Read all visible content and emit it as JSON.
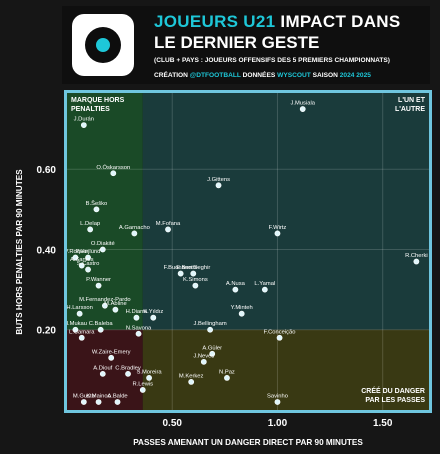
{
  "header": {
    "title_accent": "JOUEURS U21",
    "title_rest": " IMPACT DANS",
    "title_line2": "LE DERNIER GESTE",
    "subtitle": "(CLUB + PAYS : JOUEURS OFFENSIFS DES 5 PREMIERS CHAMPIONNATS)",
    "credits_label": "CRÉATION",
    "credits_author": "@DTFOOTBALL",
    "credits_data_label": "DONNÉES",
    "credits_data_src": "WYSCOUT",
    "credits_season_label": "SAISON",
    "credits_season": "2024 2025"
  },
  "colors": {
    "accent": "#1ec7d8",
    "frame": "#6fc6df",
    "q_top_left": "#1a4a27",
    "q_top_right": "#1a3b3b",
    "q_bottom_left": "#3a1418",
    "q_bottom_right": "#393913",
    "point": "#dff6fb"
  },
  "quadrant_labels": {
    "top_left": [
      "MARQUE HORS",
      "PENALTIES"
    ],
    "top_right": [
      "L'UN ET",
      "L'AUTRE"
    ],
    "bottom_right": [
      "CRÉÉ DU DANGER",
      "PAR LES PASSES"
    ]
  },
  "chart_data": {
    "type": "scatter",
    "xlabel": "PASSES AMENANT UN DANGER DIRECT PAR 90 MINUTES",
    "ylabel": "BUTS HORS PENALTIES PAR 90 MINUTES",
    "xlim": [
      0.0,
      1.72
    ],
    "ylim": [
      0.0,
      0.79
    ],
    "xticks": [
      "0.50",
      "1.00",
      "1.50"
    ],
    "xtick_values": [
      0.5,
      1.0,
      1.5
    ],
    "yticks": [
      "0.20",
      "0.40",
      "0.60"
    ],
    "ytick_values": [
      0.2,
      0.4,
      0.6
    ],
    "quadrant_split": {
      "x": 0.36,
      "y": 0.2
    },
    "points": [
      {
        "name": "J.Musiala",
        "x": 1.12,
        "y": 0.75
      },
      {
        "name": "J.Durán",
        "x": 0.08,
        "y": 0.71
      },
      {
        "name": "O.Óskarsson",
        "x": 0.22,
        "y": 0.59
      },
      {
        "name": "J.Gittens",
        "x": 0.72,
        "y": 0.56
      },
      {
        "name": "R.Cherki",
        "x": 1.66,
        "y": 0.37
      },
      {
        "name": "B.Šeško",
        "x": 0.14,
        "y": 0.5
      },
      {
        "name": "M.Fofana",
        "x": 0.48,
        "y": 0.45
      },
      {
        "name": "L.Delap",
        "x": 0.11,
        "y": 0.45
      },
      {
        "name": "A.Garnacho",
        "x": 0.32,
        "y": 0.44
      },
      {
        "name": "F.Wirtz",
        "x": 1.0,
        "y": 0.44
      },
      {
        "name": "O.Diakité",
        "x": 0.17,
        "y": 0.4
      },
      {
        "name": "V.Roque",
        "x": 0.04,
        "y": 0.38
      },
      {
        "name": "P.Højlund",
        "x": 0.1,
        "y": 0.38
      },
      {
        "name": "A.Santos",
        "x": 0.07,
        "y": 0.36
      },
      {
        "name": "E.Ben Seghir",
        "x": 0.6,
        "y": 0.34
      },
      {
        "name": "S.Castro",
        "x": 0.1,
        "y": 0.35
      },
      {
        "name": "F.Buonanotte",
        "x": 0.54,
        "y": 0.34
      },
      {
        "name": "K.Simons",
        "x": 0.61,
        "y": 0.31
      },
      {
        "name": "A.Nusa",
        "x": 0.8,
        "y": 0.3
      },
      {
        "name": "L.Yamal",
        "x": 0.94,
        "y": 0.3
      },
      {
        "name": "P.Wanner",
        "x": 0.15,
        "y": 0.31
      },
      {
        "name": "M.Fernandez-Pardo",
        "x": 0.18,
        "y": 0.26
      },
      {
        "name": "Y.Minteh",
        "x": 0.83,
        "y": 0.24
      },
      {
        "name": "H.Larsson",
        "x": 0.06,
        "y": 0.24
      },
      {
        "name": "M.Abline",
        "x": 0.23,
        "y": 0.25
      },
      {
        "name": "K.Yıldız",
        "x": 0.41,
        "y": 0.23
      },
      {
        "name": "H.Diarra",
        "x": 0.33,
        "y": 0.23
      },
      {
        "name": "C.Baleba",
        "x": 0.16,
        "y": 0.2
      },
      {
        "name": "J.Bellingham",
        "x": 0.68,
        "y": 0.2
      },
      {
        "name": "H.Mukau",
        "x": 0.04,
        "y": 0.2
      },
      {
        "name": "N.Savona",
        "x": 0.34,
        "y": 0.19
      },
      {
        "name": "F.Conceição",
        "x": 1.01,
        "y": 0.18
      },
      {
        "name": "L.Camara",
        "x": 0.07,
        "y": 0.18
      },
      {
        "name": "A.Güler",
        "x": 0.69,
        "y": 0.14
      },
      {
        "name": "W.Zaire-Emery",
        "x": 0.21,
        "y": 0.13
      },
      {
        "name": "J.Neves",
        "x": 0.65,
        "y": 0.12
      },
      {
        "name": "C.Bradley",
        "x": 0.29,
        "y": 0.09
      },
      {
        "name": "N.Paz",
        "x": 0.76,
        "y": 0.08
      },
      {
        "name": "A.Diouf",
        "x": 0.17,
        "y": 0.09
      },
      {
        "name": "S.Moreira",
        "x": 0.39,
        "y": 0.08
      },
      {
        "name": "M.Kerkez",
        "x": 0.59,
        "y": 0.07
      },
      {
        "name": "R.Lewis",
        "x": 0.36,
        "y": 0.05
      },
      {
        "name": "M.Gusto",
        "x": 0.08,
        "y": 0.02
      },
      {
        "name": "K.Mainoo",
        "x": 0.15,
        "y": 0.02
      },
      {
        "name": "A.Balde",
        "x": 0.24,
        "y": 0.02
      },
      {
        "name": "Savinho",
        "x": 1.0,
        "y": 0.02
      }
    ]
  }
}
